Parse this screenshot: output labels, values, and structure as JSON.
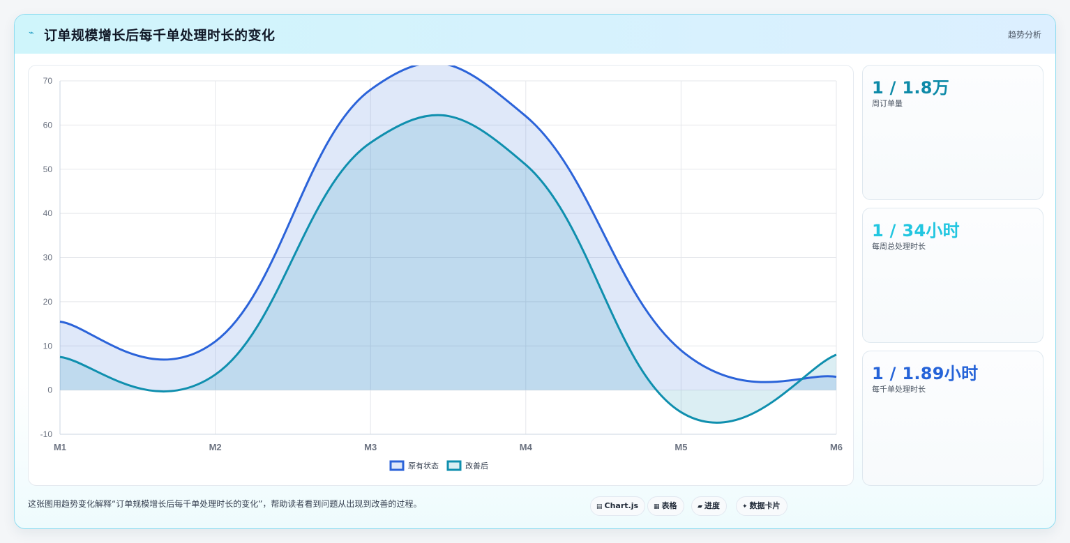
{
  "header": {
    "icon": "trend-line-icon",
    "title": "订单规模增长后每千单处理时长的变化",
    "tag": "趋势分析"
  },
  "stats": [
    {
      "value": "1 / 1.8万",
      "label": "周订单量",
      "color": "#0e8aa8"
    },
    {
      "value": "1 / 34小时",
      "label": "每周总处理时长",
      "color": "#22c6e0"
    },
    {
      "value": "1 / 1.89小时",
      "label": "每千单处理时长",
      "color": "#2563d8"
    }
  ],
  "footer": {
    "text": "这张图用趋势变化解释“订单规模增长后每千单处理时长的变化”，帮助读者看到问题从出现到改善的过程。",
    "chips": [
      {
        "icon": "chart-icon",
        "glyph": "▤",
        "label": "Chart.js"
      },
      {
        "icon": "table-icon",
        "glyph": "▦",
        "label": "表格"
      },
      {
        "icon": "progress-icon",
        "glyph": "▰",
        "label": "进度"
      },
      {
        "icon": "card-icon",
        "glyph": "✦",
        "label": "数据卡片"
      }
    ]
  },
  "chart_data": {
    "type": "area",
    "title": "",
    "xlabel": "",
    "ylabel": "",
    "categories": [
      "M1",
      "M2",
      "M3",
      "M4",
      "M5",
      "M6"
    ],
    "ylim": [
      -10,
      70
    ],
    "yticks": [
      -10,
      0,
      10,
      20,
      30,
      40,
      50,
      60,
      70
    ],
    "grid": true,
    "legend_position": "bottom",
    "series": [
      {
        "name": "原有状态",
        "values": [
          15.5,
          11,
          68,
          62,
          9,
          3
        ],
        "color": "#2b63d9",
        "fill": "rgba(43,99,217,0.15)"
      },
      {
        "name": "改善后",
        "values": [
          7.5,
          3.5,
          56,
          51,
          -5,
          8
        ],
        "color": "#0f8fae",
        "fill": "rgba(15,143,174,0.15)"
      }
    ]
  }
}
